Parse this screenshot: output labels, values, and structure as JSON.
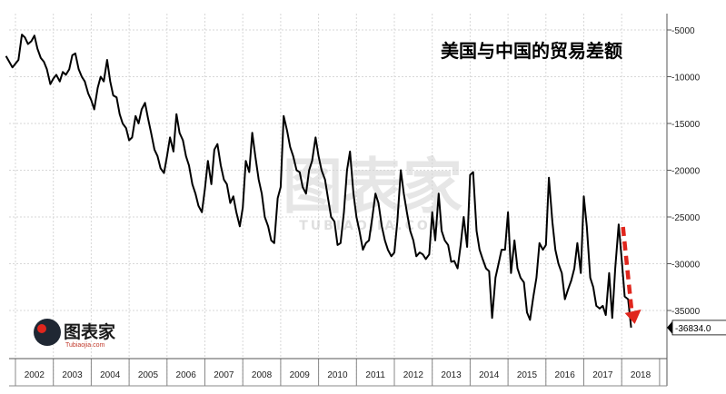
{
  "chart_data": {
    "type": "line",
    "title": "美国与中国的贸易差额",
    "xlabel": "",
    "ylabel": "",
    "ylim": [
      -38500,
      -3000
    ],
    "yticks": [
      -5000,
      -10000,
      -15000,
      -20000,
      -25000,
      -30000,
      -35000
    ],
    "ytick_labels": [
      "-5000",
      "-10000",
      "-15000",
      "-20000",
      "-25000",
      "-30000",
      "-35000"
    ],
    "x_range": [
      2001.75,
      2018.6
    ],
    "years": [
      "2002",
      "2003",
      "2004",
      "2005",
      "2006",
      "2007",
      "2008",
      "2009",
      "2010",
      "2011",
      "2012",
      "2013",
      "2014",
      "2015",
      "2016",
      "2017",
      "2018"
    ],
    "last_value": -36834,
    "last_value_label": "-36834.0",
    "grid": true,
    "legend": "none",
    "series": [
      {
        "color": "#000000",
        "points": [
          [
            2001.75,
            -7800
          ],
          [
            2001.92,
            -9000
          ],
          [
            2002.08,
            -8200
          ],
          [
            2002.17,
            -5500
          ],
          [
            2002.25,
            -5800
          ],
          [
            2002.33,
            -6500
          ],
          [
            2002.42,
            -6200
          ],
          [
            2002.5,
            -5600
          ],
          [
            2002.58,
            -7000
          ],
          [
            2002.67,
            -8000
          ],
          [
            2002.75,
            -8400
          ],
          [
            2002.83,
            -9200
          ],
          [
            2002.92,
            -10800
          ],
          [
            2003.0,
            -10200
          ],
          [
            2003.08,
            -9800
          ],
          [
            2003.17,
            -10500
          ],
          [
            2003.25,
            -9500
          ],
          [
            2003.33,
            -9800
          ],
          [
            2003.42,
            -9200
          ],
          [
            2003.5,
            -7700
          ],
          [
            2003.58,
            -7500
          ],
          [
            2003.67,
            -9200
          ],
          [
            2003.75,
            -10000
          ],
          [
            2003.83,
            -10500
          ],
          [
            2003.92,
            -11800
          ],
          [
            2004.0,
            -12500
          ],
          [
            2004.08,
            -13500
          ],
          [
            2004.17,
            -11200
          ],
          [
            2004.25,
            -10000
          ],
          [
            2004.33,
            -10500
          ],
          [
            2004.42,
            -8200
          ],
          [
            2004.5,
            -10500
          ],
          [
            2004.58,
            -12000
          ],
          [
            2004.67,
            -12200
          ],
          [
            2004.75,
            -14000
          ],
          [
            2004.83,
            -15000
          ],
          [
            2004.92,
            -15500
          ],
          [
            2005.0,
            -16800
          ],
          [
            2005.08,
            -16500
          ],
          [
            2005.17,
            -14200
          ],
          [
            2005.25,
            -15000
          ],
          [
            2005.33,
            -13500
          ],
          [
            2005.42,
            -12800
          ],
          [
            2005.5,
            -14500
          ],
          [
            2005.58,
            -16000
          ],
          [
            2005.67,
            -17800
          ],
          [
            2005.75,
            -18500
          ],
          [
            2005.83,
            -19800
          ],
          [
            2005.92,
            -20300
          ],
          [
            2006.0,
            -18500
          ],
          [
            2006.08,
            -16500
          ],
          [
            2006.17,
            -18000
          ],
          [
            2006.25,
            -14000
          ],
          [
            2006.33,
            -16000
          ],
          [
            2006.42,
            -16800
          ],
          [
            2006.5,
            -18500
          ],
          [
            2006.58,
            -19500
          ],
          [
            2006.67,
            -21500
          ],
          [
            2006.75,
            -22500
          ],
          [
            2006.83,
            -23800
          ],
          [
            2006.92,
            -24500
          ],
          [
            2007.0,
            -22000
          ],
          [
            2007.08,
            -19000
          ],
          [
            2007.17,
            -21500
          ],
          [
            2007.25,
            -17800
          ],
          [
            2007.33,
            -17200
          ],
          [
            2007.42,
            -19500
          ],
          [
            2007.5,
            -21000
          ],
          [
            2007.58,
            -21500
          ],
          [
            2007.67,
            -23500
          ],
          [
            2007.75,
            -22800
          ],
          [
            2007.83,
            -24500
          ],
          [
            2007.92,
            -26000
          ],
          [
            2008.0,
            -24000
          ],
          [
            2008.08,
            -19000
          ],
          [
            2008.17,
            -20200
          ],
          [
            2008.25,
            -16000
          ],
          [
            2008.33,
            -18500
          ],
          [
            2008.42,
            -21000
          ],
          [
            2008.5,
            -22500
          ],
          [
            2008.58,
            -25000
          ],
          [
            2008.67,
            -26000
          ],
          [
            2008.75,
            -27500
          ],
          [
            2008.83,
            -27800
          ],
          [
            2008.92,
            -23000
          ],
          [
            2009.0,
            -21800
          ],
          [
            2009.08,
            -14200
          ],
          [
            2009.17,
            -15800
          ],
          [
            2009.25,
            -17500
          ],
          [
            2009.33,
            -18500
          ],
          [
            2009.42,
            -20000
          ],
          [
            2009.5,
            -20200
          ],
          [
            2009.58,
            -21800
          ],
          [
            2009.67,
            -22500
          ],
          [
            2009.75,
            -20000
          ],
          [
            2009.83,
            -19000
          ],
          [
            2009.92,
            -16500
          ],
          [
            2010.0,
            -18500
          ],
          [
            2010.08,
            -20000
          ],
          [
            2010.17,
            -21000
          ],
          [
            2010.25,
            -23000
          ],
          [
            2010.33,
            -25000
          ],
          [
            2010.42,
            -25500
          ],
          [
            2010.5,
            -28000
          ],
          [
            2010.58,
            -27800
          ],
          [
            2010.67,
            -24500
          ],
          [
            2010.75,
            -20000
          ],
          [
            2010.83,
            -18000
          ],
          [
            2010.92,
            -22500
          ],
          [
            2011.0,
            -25000
          ],
          [
            2011.08,
            -26500
          ],
          [
            2011.17,
            -28500
          ],
          [
            2011.25,
            -27800
          ],
          [
            2011.33,
            -27500
          ],
          [
            2011.42,
            -25000
          ],
          [
            2011.5,
            -22500
          ],
          [
            2011.58,
            -23500
          ],
          [
            2011.67,
            -26000
          ],
          [
            2011.75,
            -27500
          ],
          [
            2011.83,
            -28500
          ],
          [
            2011.92,
            -29200
          ],
          [
            2012.0,
            -28800
          ],
          [
            2012.08,
            -25500
          ],
          [
            2012.17,
            -20000
          ],
          [
            2012.25,
            -22500
          ],
          [
            2012.33,
            -24500
          ],
          [
            2012.42,
            -26500
          ],
          [
            2012.5,
            -27500
          ],
          [
            2012.58,
            -29200
          ],
          [
            2012.67,
            -28800
          ],
          [
            2012.75,
            -29000
          ],
          [
            2012.83,
            -29500
          ],
          [
            2012.92,
            -29000
          ],
          [
            2013.0,
            -24500
          ],
          [
            2013.08,
            -27500
          ],
          [
            2013.17,
            -22500
          ],
          [
            2013.25,
            -26500
          ],
          [
            2013.33,
            -27500
          ],
          [
            2013.42,
            -28000
          ],
          [
            2013.5,
            -29800
          ],
          [
            2013.58,
            -29700
          ],
          [
            2013.67,
            -30500
          ],
          [
            2013.75,
            -28000
          ],
          [
            2013.83,
            -25000
          ],
          [
            2013.92,
            -28200
          ],
          [
            2014.0,
            -20500
          ],
          [
            2014.08,
            -20200
          ],
          [
            2014.17,
            -26500
          ],
          [
            2014.25,
            -28500
          ],
          [
            2014.33,
            -29500
          ],
          [
            2014.42,
            -30500
          ],
          [
            2014.5,
            -30800
          ],
          [
            2014.58,
            -35800
          ],
          [
            2014.67,
            -31500
          ],
          [
            2014.75,
            -30000
          ],
          [
            2014.83,
            -28500
          ],
          [
            2014.92,
            -28500
          ],
          [
            2015.0,
            -24500
          ],
          [
            2015.08,
            -31000
          ],
          [
            2015.17,
            -27500
          ],
          [
            2015.25,
            -30500
          ],
          [
            2015.33,
            -31500
          ],
          [
            2015.42,
            -32000
          ],
          [
            2015.5,
            -35200
          ],
          [
            2015.58,
            -36000
          ],
          [
            2015.67,
            -33500
          ],
          [
            2015.75,
            -31500
          ],
          [
            2015.83,
            -27800
          ],
          [
            2015.92,
            -28500
          ],
          [
            2016.0,
            -28000
          ],
          [
            2016.08,
            -20800
          ],
          [
            2016.17,
            -25500
          ],
          [
            2016.25,
            -28500
          ],
          [
            2016.33,
            -30000
          ],
          [
            2016.42,
            -31000
          ],
          [
            2016.5,
            -33800
          ],
          [
            2016.58,
            -32800
          ],
          [
            2016.67,
            -31800
          ],
          [
            2016.75,
            -30500
          ],
          [
            2016.83,
            -27800
          ],
          [
            2016.92,
            -31000
          ],
          [
            2017.0,
            -22800
          ],
          [
            2017.08,
            -26000
          ],
          [
            2017.17,
            -31500
          ],
          [
            2017.25,
            -32500
          ],
          [
            2017.33,
            -34500
          ],
          [
            2017.42,
            -34800
          ],
          [
            2017.5,
            -34500
          ],
          [
            2017.58,
            -35500
          ],
          [
            2017.67,
            -31000
          ],
          [
            2017.75,
            -35800
          ],
          [
            2017.83,
            -30500
          ],
          [
            2017.92,
            -25800
          ],
          [
            2018.0,
            -29500
          ],
          [
            2018.08,
            -33500
          ],
          [
            2018.17,
            -33800
          ],
          [
            2018.25,
            -36834
          ]
        ]
      }
    ]
  },
  "watermark": {
    "text": "图表家",
    "sub": "TUBIAOJIA.COM"
  },
  "logo": {
    "text": "图表家",
    "sub": "Tubiaojia.com"
  },
  "colors": {
    "line": "#000000",
    "arrow": "#e0261d",
    "grid": "#d7d7d7",
    "axis": "#555555",
    "last_label_bg": "#ffffff"
  }
}
